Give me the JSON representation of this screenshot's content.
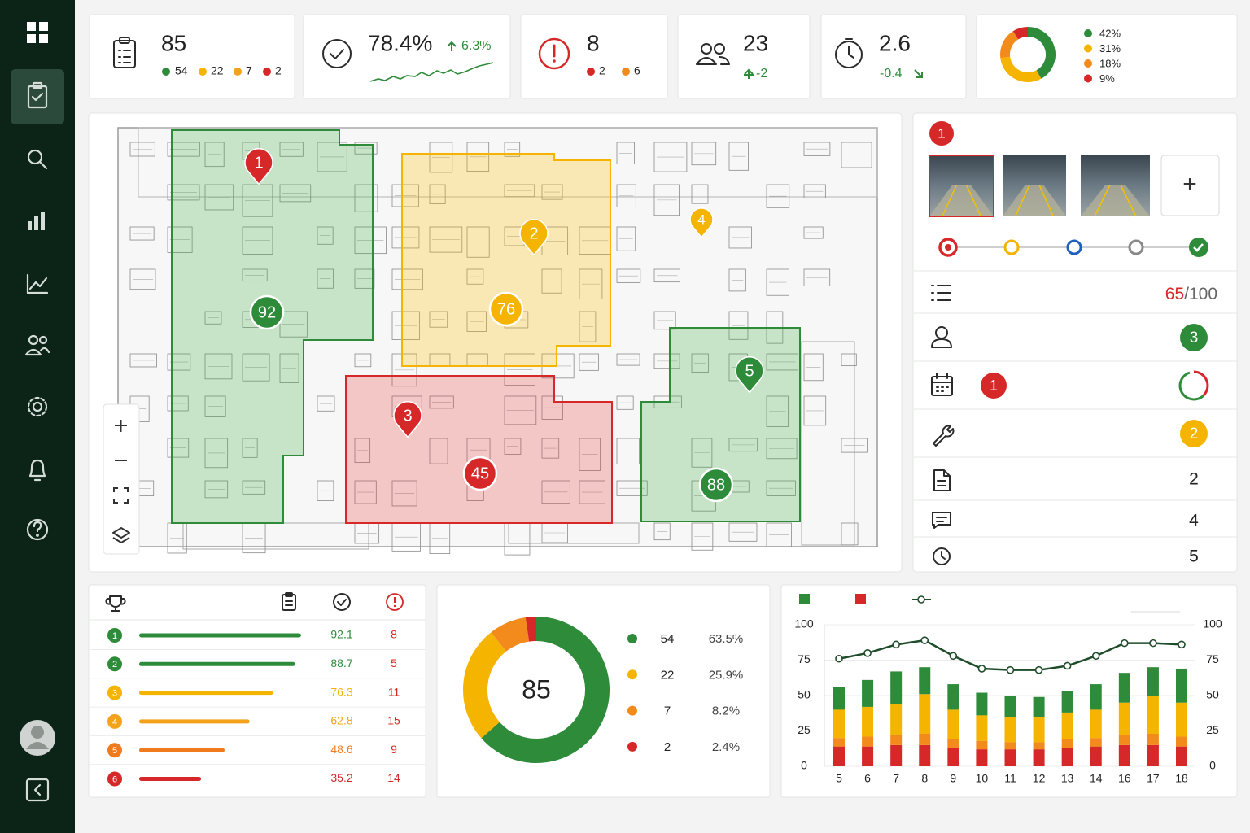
{
  "kpis": {
    "inspections": {
      "value": 85,
      "breakdown": [
        54,
        22,
        7,
        2
      ]
    },
    "compliance": {
      "value": {
        "value": 78.4,
        "label": "78.4%"
      },
      "change": {
        "value": 6.3,
        "label": "6.3%"
      }
    },
    "issues": {
      "value": 8,
      "breakdown": [
        2,
        6
      ]
    },
    "staff": {
      "value": 23,
      "change": -2
    },
    "duration": {
      "value": 2.6,
      "change": -0.4
    },
    "status_mix": {
      "type": "pie",
      "values": [
        42,
        31,
        18,
        9
      ],
      "value_labels": [
        "42%",
        "31%",
        "18%",
        "9%"
      ],
      "colors": [
        "#2e8b3a",
        "#f4b400",
        "#f28a1c",
        "#d62828"
      ]
    }
  },
  "map": {
    "pins": [
      "1",
      "2",
      "3",
      "4",
      "5"
    ],
    "zone_scores": [
      92,
      76,
      45,
      88
    ]
  },
  "detail": {
    "pin": "1",
    "add": "+",
    "score": 65,
    "score_max": "/100",
    "assignees": 3,
    "schedule_alerts": 1,
    "tools": 2,
    "documents": 2,
    "comments": 4,
    "history": 5
  },
  "ranking": {
    "rows": [
      {
        "rank": 1,
        "score": 92.1,
        "issues": 8,
        "color": "#2e8b3a"
      },
      {
        "rank": 2,
        "score": 88.7,
        "issues": 5,
        "color": "#2e8b3a"
      },
      {
        "rank": 3,
        "score": 76.3,
        "issues": 11,
        "color": "#f4b400"
      },
      {
        "rank": 4,
        "score": 62.8,
        "issues": 15,
        "color": "#f4a21c"
      },
      {
        "rank": 5,
        "score": 48.6,
        "issues": 9,
        "color": "#f07a1c"
      },
      {
        "rank": 6,
        "score": 35.2,
        "issues": 14,
        "color": "#d62828"
      }
    ]
  },
  "donut": {
    "type": "pie",
    "total": 85,
    "values": [
      54,
      22,
      7,
      2
    ],
    "shares": [
      {
        "value": 63.5,
        "label": "63.5%"
      },
      {
        "value": 25.9,
        "label": "25.9%"
      },
      {
        "value": 8.2,
        "label": "8.2%"
      },
      {
        "value": 2.4,
        "label": "2.4%"
      }
    ],
    "colors": [
      "#2e8b3a",
      "#f4b400",
      "#f28a1c",
      "#d62828"
    ]
  },
  "trend": {
    "type": "bar",
    "stacked": true,
    "categories": [
      "5",
      "6",
      "7",
      "8",
      "9",
      "10",
      "11",
      "12",
      "13",
      "14",
      "16",
      "17",
      "18"
    ],
    "series": [
      {
        "color": "#d62828",
        "values": [
          14,
          14,
          15,
          15,
          13,
          12,
          12,
          12,
          13,
          14,
          15,
          15,
          14
        ]
      },
      {
        "color": "#f28a1c",
        "values": [
          6,
          7,
          7,
          8,
          6,
          6,
          5,
          5,
          6,
          6,
          7,
          8,
          7
        ]
      },
      {
        "color": "#f4b400",
        "values": [
          20,
          21,
          22,
          28,
          21,
          18,
          18,
          18,
          19,
          20,
          23,
          27,
          24
        ]
      },
      {
        "color": "#2e8b3a",
        "values": [
          16,
          19,
          23,
          19,
          18,
          16,
          15,
          14,
          15,
          18,
          21,
          20,
          24
        ]
      },
      {
        "type": "line",
        "axis": "y2",
        "color": "#1f4d2b",
        "values": [
          76,
          80,
          86,
          89,
          78,
          69,
          68,
          68,
          71,
          78,
          87,
          87,
          86
        ]
      }
    ],
    "ylim": [
      0,
      100
    ],
    "yticks": [
      0,
      25,
      50,
      75,
      100
    ],
    "y2lim": [
      0,
      100
    ],
    "y2ticks": [
      0,
      25,
      50,
      75,
      100
    ]
  }
}
